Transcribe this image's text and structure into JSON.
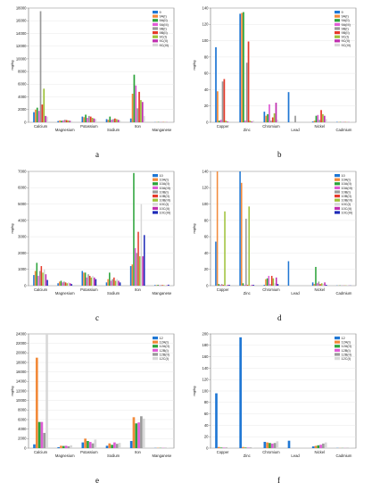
{
  "palette": {
    "A": "#1f77d4",
    "B": "#f28a3a",
    "C": "#2ba33a",
    "D": "#e05cd6",
    "E": "#9a9a9a",
    "F": "#e63a2a",
    "G": "#9ec23a",
    "H": "#c02fb0",
    "I": "#d8d8d8",
    "J": "#1e2ab8"
  },
  "chart_data": [
    {
      "id": "a",
      "panel_label": "a",
      "type": "bar",
      "ylabel": "mg/kg",
      "ylim": [
        0,
        18000
      ],
      "yticks": [
        0,
        2000,
        4000,
        6000,
        8000,
        10000,
        12000,
        14000,
        16000,
        18000
      ],
      "categories": [
        "Calcium",
        "Magnesium",
        "Potassium",
        "Sodium",
        "Iron",
        "Manganese"
      ],
      "grid": true,
      "legend_position": "top-right",
      "series": [
        {
          "name": "9",
          "color_key": "A",
          "values": [
            1600,
            200,
            900,
            500,
            600,
            30
          ]
        },
        {
          "name": "9A(I)",
          "color_key": "B",
          "values": [
            2000,
            300,
            800,
            400,
            4500,
            40
          ]
        },
        {
          "name": "9A(II)",
          "color_key": "C",
          "values": [
            2300,
            250,
            1200,
            900,
            7500,
            50
          ]
        },
        {
          "name": "9A(III)",
          "color_key": "D",
          "values": [
            1800,
            300,
            700,
            400,
            5800,
            35
          ]
        },
        {
          "name": "9B(I)",
          "color_key": "E",
          "values": [
            17500,
            400,
            1000,
            500,
            2200,
            45
          ]
        },
        {
          "name": "9B(II)",
          "color_key": "F",
          "values": [
            2800,
            350,
            900,
            600,
            4800,
            40
          ]
        },
        {
          "name": "9C(I)",
          "color_key": "G",
          "values": [
            5300,
            300,
            700,
            500,
            3500,
            30
          ]
        },
        {
          "name": "9C(II)",
          "color_key": "H",
          "values": [
            1000,
            250,
            600,
            400,
            3200,
            25
          ]
        },
        {
          "name": "9C(III)",
          "color_key": "I",
          "values": [
            900,
            200,
            500,
            300,
            1000,
            20
          ]
        }
      ]
    },
    {
      "id": "b",
      "panel_label": "b",
      "type": "bar",
      "ylabel": "mg/kg",
      "ylim": [
        0,
        140
      ],
      "yticks": [
        0,
        20,
        40,
        60,
        80,
        100,
        120,
        140
      ],
      "categories": [
        "Copper",
        "Zinc",
        "Chromium",
        "Lead",
        "Nickel",
        "Cadmium"
      ],
      "grid": true,
      "legend_position": "top-right",
      "series": [
        {
          "name": "9",
          "color_key": "A",
          "values": [
            92,
            133,
            13,
            37,
            1,
            0.5
          ]
        },
        {
          "name": "9A(I)",
          "color_key": "B",
          "values": [
            38,
            134,
            8,
            0,
            2,
            0.3
          ]
        },
        {
          "name": "9A(II)",
          "color_key": "C",
          "values": [
            2,
            135,
            10,
            0,
            8,
            0.4
          ]
        },
        {
          "name": "9A(III)",
          "color_key": "D",
          "values": [
            3,
            2,
            22,
            0,
            9,
            0.3
          ]
        },
        {
          "name": "9B(I)",
          "color_key": "E",
          "values": [
            50,
            73,
            2,
            8,
            3,
            0.5
          ]
        },
        {
          "name": "9B(II)",
          "color_key": "F",
          "values": [
            53,
            99,
            6,
            0,
            15,
            0.3
          ]
        },
        {
          "name": "9C(I)",
          "color_key": "G",
          "values": [
            2,
            2,
            11,
            0,
            10,
            0.2
          ]
        },
        {
          "name": "9C(II)",
          "color_key": "H",
          "values": [
            1,
            1,
            24,
            0,
            8,
            0.2
          ]
        },
        {
          "name": "9C(III)",
          "color_key": "I",
          "values": [
            1,
            2,
            3,
            0,
            4,
            0.3
          ]
        }
      ]
    },
    {
      "id": "c",
      "panel_label": "c",
      "type": "bar",
      "ylabel": "mg/kg",
      "ylim": [
        0,
        7000
      ],
      "yticks": [
        0,
        1000,
        2000,
        3000,
        4000,
        5000,
        6000,
        7000
      ],
      "categories": [
        "Calcium",
        "Magnesium",
        "Potassium",
        "Sodium",
        "Iron",
        "Manganese"
      ],
      "grid": true,
      "legend_position": "top-right",
      "series": [
        {
          "name": "10",
          "color_key": "A",
          "values": [
            650,
            150,
            900,
            200,
            1200,
            40
          ]
        },
        {
          "name": "10A(I)",
          "color_key": "B",
          "values": [
            900,
            250,
            800,
            400,
            1300,
            35
          ]
        },
        {
          "name": "10A(II)",
          "color_key": "C",
          "values": [
            1400,
            300,
            800,
            800,
            6900,
            50
          ]
        },
        {
          "name": "10A(III)",
          "color_key": "D",
          "values": [
            600,
            200,
            500,
            300,
            2300,
            30
          ]
        },
        {
          "name": "10B(I)",
          "color_key": "E",
          "values": [
            900,
            250,
            700,
            400,
            2000,
            35
          ]
        },
        {
          "name": "10B(II)",
          "color_key": "F",
          "values": [
            1200,
            200,
            600,
            500,
            3300,
            40
          ]
        },
        {
          "name": "10B(III)",
          "color_key": "G",
          "values": [
            800,
            150,
            500,
            300,
            1800,
            30
          ]
        },
        {
          "name": "10C(I)",
          "color_key": "I",
          "values": [
            1000,
            200,
            600,
            400,
            5000,
            30
          ]
        },
        {
          "name": "10C(II)",
          "color_key": "H",
          "values": [
            700,
            150,
            500,
            300,
            1800,
            25
          ]
        },
        {
          "name": "10C(III)",
          "color_key": "J",
          "values": [
            350,
            100,
            400,
            200,
            3100,
            60
          ]
        }
      ]
    },
    {
      "id": "d",
      "panel_label": "d",
      "type": "bar",
      "ylabel": "mg/kg",
      "ylim": [
        0,
        140
      ],
      "yticks": [
        0,
        20,
        40,
        60,
        80,
        100,
        120,
        140
      ],
      "categories": [
        "Copper",
        "Zinc",
        "Chromium",
        "Lead",
        "Nickel",
        "Cadmium"
      ],
      "grid": true,
      "legend_position": "top-right",
      "series": [
        {
          "name": "10",
          "color_key": "A",
          "values": [
            54,
            141,
            1,
            30,
            4,
            0.3
          ]
        },
        {
          "name": "10A(I)",
          "color_key": "B",
          "values": [
            142,
            126,
            8,
            0,
            2,
            0.2
          ]
        },
        {
          "name": "10A(II)",
          "color_key": "C",
          "values": [
            2,
            3,
            9,
            0,
            23,
            0.4
          ]
        },
        {
          "name": "10A(III)",
          "color_key": "D",
          "values": [
            1,
            1,
            12,
            0,
            3,
            0.2
          ]
        },
        {
          "name": "10B(I)",
          "color_key": "E",
          "values": [
            2,
            82,
            2,
            0,
            5,
            0.3
          ]
        },
        {
          "name": "10B(II)",
          "color_key": "F",
          "values": [
            1,
            1,
            12,
            0,
            2,
            0.2
          ]
        },
        {
          "name": "10B(III)",
          "color_key": "G",
          "values": [
            91,
            97,
            9,
            0,
            3,
            0.3
          ]
        },
        {
          "name": "10C(I)",
          "color_key": "I",
          "values": [
            1,
            1,
            3,
            0,
            2,
            0.2
          ]
        },
        {
          "name": "10C(II)",
          "color_key": "H",
          "values": [
            1,
            1,
            10,
            0,
            4,
            0.2
          ]
        },
        {
          "name": "10C(III)",
          "color_key": "J",
          "values": [
            1,
            1,
            2,
            0,
            1,
            0.2
          ]
        }
      ]
    },
    {
      "id": "e",
      "panel_label": "e",
      "type": "bar",
      "ylabel": "mg/kg",
      "ylim": [
        0,
        24000
      ],
      "yticks": [
        0,
        2000,
        4000,
        6000,
        8000,
        10000,
        12000,
        14000,
        16000,
        18000,
        20000,
        22000,
        24000
      ],
      "categories": [
        "Calcium",
        "Magnesium",
        "Potassium",
        "Sodium",
        "Iron",
        "Manganese"
      ],
      "grid": true,
      "legend_position": "top-right",
      "series": [
        {
          "name": "12",
          "color_key": "A",
          "values": [
            800,
            200,
            1200,
            500,
            1500,
            40
          ]
        },
        {
          "name": "12A(I)",
          "color_key": "B",
          "values": [
            19000,
            500,
            2000,
            1000,
            6500,
            60
          ]
        },
        {
          "name": "12A(II)",
          "color_key": "C",
          "values": [
            5500,
            450,
            1500,
            700,
            5200,
            50
          ]
        },
        {
          "name": "12B(I)",
          "color_key": "D",
          "values": [
            5500,
            500,
            1300,
            1200,
            5400,
            55
          ]
        },
        {
          "name": "12B(II)",
          "color_key": "E",
          "values": [
            3200,
            400,
            1000,
            900,
            6700,
            45
          ]
        },
        {
          "name": "12C(I)",
          "color_key": "I",
          "values": [
            24500,
            600,
            1800,
            1100,
            6200,
            60
          ]
        }
      ]
    },
    {
      "id": "f",
      "panel_label": "f",
      "type": "bar",
      "ylabel": "mg/kg",
      "ylim": [
        0,
        200
      ],
      "yticks": [
        0,
        20,
        40,
        60,
        80,
        100,
        120,
        140,
        160,
        180,
        200
      ],
      "categories": [
        "Copper",
        "Zinc",
        "Chromium",
        "Lead",
        "Nickel",
        "Cadmium"
      ],
      "grid": true,
      "legend_position": "top-right",
      "series": [
        {
          "name": "12",
          "color_key": "A",
          "values": [
            96,
            194,
            11,
            13,
            3,
            0.3
          ]
        },
        {
          "name": "12A(I)",
          "color_key": "B",
          "values": [
            2,
            2,
            10,
            0,
            4,
            0.2
          ]
        },
        {
          "name": "12A(II)",
          "color_key": "C",
          "values": [
            1,
            1,
            9,
            0,
            5,
            0.2
          ]
        },
        {
          "name": "12B(I)",
          "color_key": "D",
          "values": [
            1,
            1,
            8,
            0,
            6,
            0.2
          ]
        },
        {
          "name": "12B(II)",
          "color_key": "E",
          "values": [
            1,
            1,
            9,
            0,
            8,
            0.3
          ]
        },
        {
          "name": "12C(I)",
          "color_key": "I",
          "values": [
            1,
            1,
            12,
            0,
            10,
            0.3
          ]
        }
      ]
    }
  ]
}
